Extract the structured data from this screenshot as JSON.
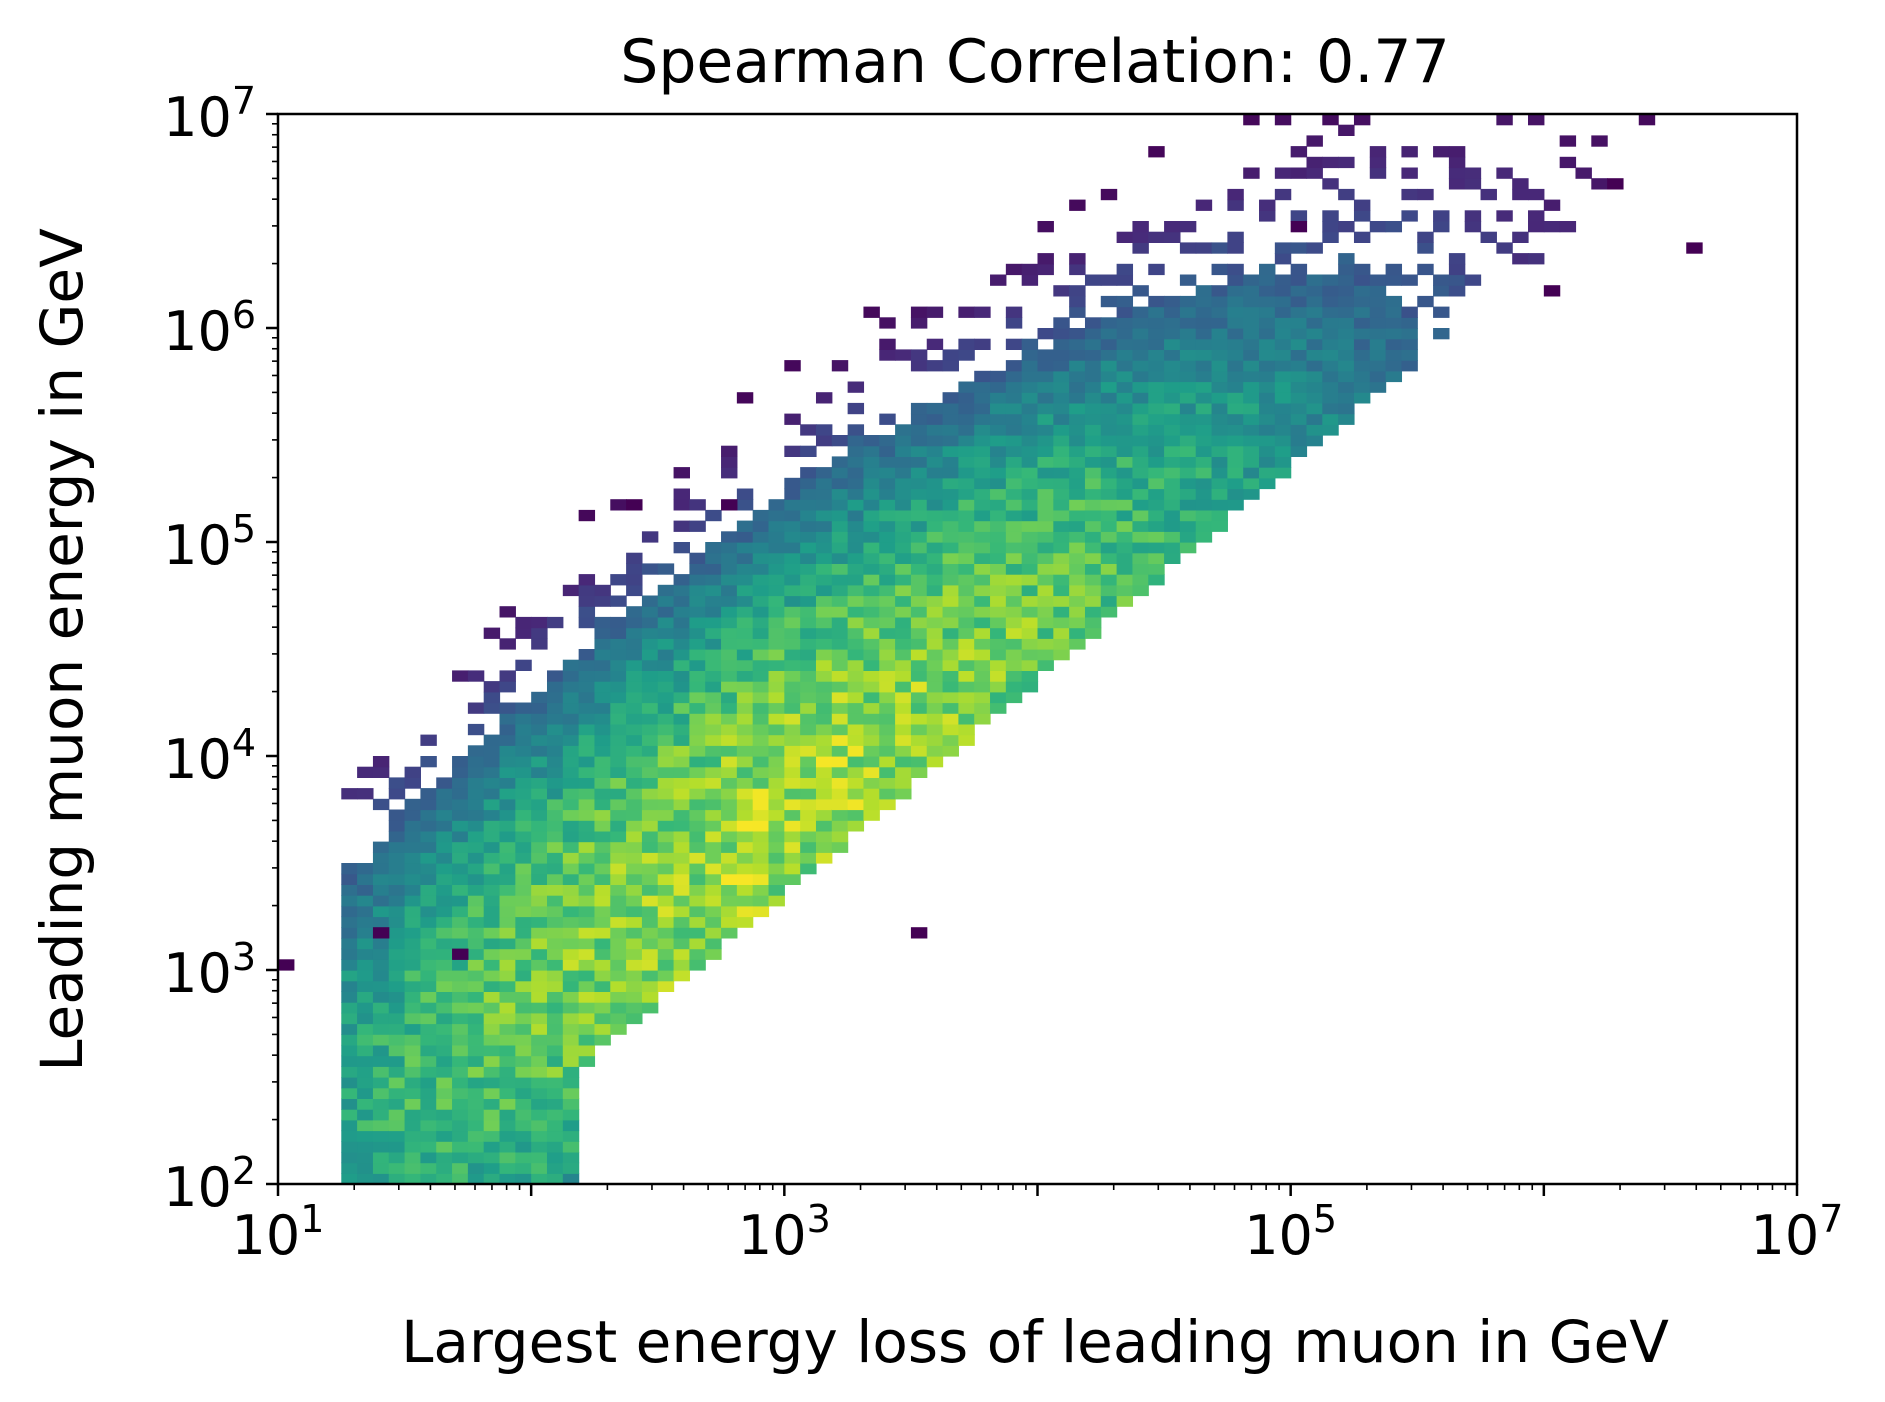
{
  "chart_data": {
    "type": "heatmap",
    "title": "Spearman Correlation: 0.77",
    "xlabel": "Largest energy loss of leading muon in GeV",
    "ylabel": "Leading muon energy in GeV",
    "xscale": "log",
    "yscale": "log",
    "xlim": [
      10,
      10000000
    ],
    "ylim": [
      100,
      10000000
    ],
    "x_ticks": [
      {
        "base": "10",
        "exp": "1"
      },
      {
        "base": "10",
        "exp": "3"
      },
      {
        "base": "10",
        "exp": "5"
      },
      {
        "base": "10",
        "exp": "7"
      }
    ],
    "y_ticks": [
      {
        "base": "10",
        "exp": "2"
      },
      {
        "base": "10",
        "exp": "3"
      },
      {
        "base": "10",
        "exp": "4"
      },
      {
        "base": "10",
        "exp": "5"
      },
      {
        "base": "10",
        "exp": "6"
      },
      {
        "base": "10",
        "exp": "7"
      }
    ],
    "colormap": "viridis",
    "grid": false,
    "legend": "none",
    "description_of_density": {
      "peak_at": {
        "x": 1000,
        "y": 5000
      },
      "trend": "leading muon energy increases with largest energy loss (log-log correlated band)"
    },
    "outliers": [
      {
        "x": 10,
        "y": 1000
      },
      {
        "x": 2000000,
        "y": 5000000
      },
      {
        "x": 100000,
        "y": 3000000
      },
      {
        "x": 4000000,
        "y": 2500000
      },
      {
        "x": 1000000,
        "y": 1500000
      },
      {
        "x": 25,
        "y": 1500
      },
      {
        "x": 50,
        "y": 1200
      },
      {
        "x": 600,
        "y": 150000
      },
      {
        "x": 250,
        "y": 150000
      },
      {
        "x": 3500,
        "y": 1500
      }
    ]
  }
}
